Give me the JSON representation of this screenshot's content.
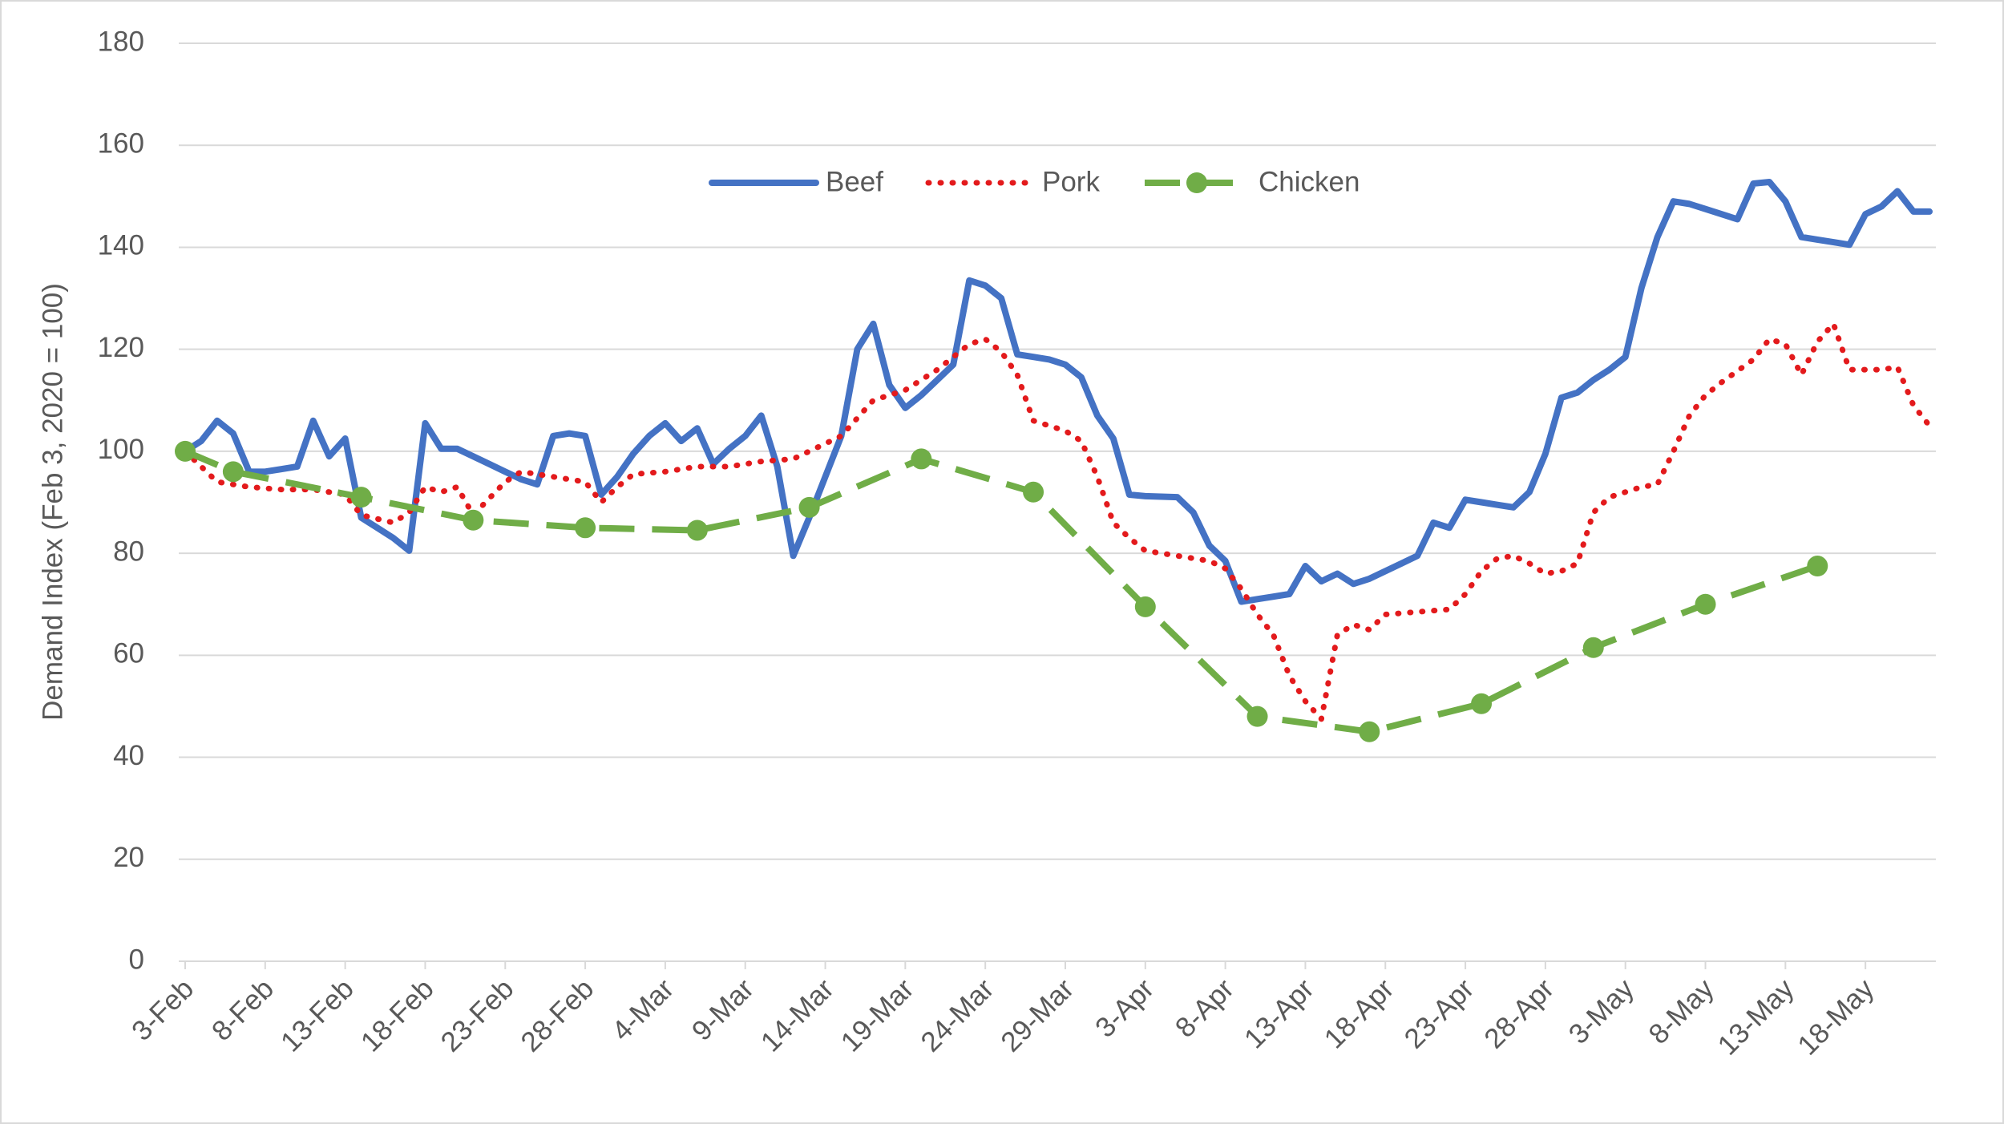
{
  "chart_data": {
    "type": "line",
    "y_label": "Demand Index (Feb 3, 2020 = 100)",
    "xlim": [
      0,
      109.4
    ],
    "xticks": [
      {
        "value": 0,
        "label": "3-Feb"
      },
      {
        "value": 5,
        "label": "8-Feb"
      },
      {
        "value": 10,
        "label": "13-Feb"
      },
      {
        "value": 15,
        "label": "18-Feb"
      },
      {
        "value": 20,
        "label": "23-Feb"
      },
      {
        "value": 25,
        "label": "28-Feb"
      },
      {
        "value": 30,
        "label": "4-Mar"
      },
      {
        "value": 35,
        "label": "9-Mar"
      },
      {
        "value": 40,
        "label": "14-Mar"
      },
      {
        "value": 45,
        "label": "19-Mar"
      },
      {
        "value": 50,
        "label": "24-Mar"
      },
      {
        "value": 55,
        "label": "29-Mar"
      },
      {
        "value": 60,
        "label": "3-Apr"
      },
      {
        "value": 65,
        "label": "8-Apr"
      },
      {
        "value": 70,
        "label": "13-Apr"
      },
      {
        "value": 75,
        "label": "18-Apr"
      },
      {
        "value": 80,
        "label": "23-Apr"
      },
      {
        "value": 85,
        "label": "28-Apr"
      },
      {
        "value": 90,
        "label": "3-May"
      },
      {
        "value": 95,
        "label": "8-May"
      },
      {
        "value": 100,
        "label": "13-May"
      },
      {
        "value": 105,
        "label": "18-May"
      }
    ],
    "ylim": [
      0,
      180
    ],
    "yticks": [
      0,
      20,
      40,
      60,
      80,
      100,
      120,
      140,
      160,
      180
    ],
    "grid": true,
    "legend": "top",
    "series": [
      {
        "name": "Beef",
        "color": "#4472c4",
        "style": "solid",
        "x": [
          0,
          1,
          2,
          3,
          4,
          5,
          6,
          7,
          8,
          9,
          10,
          11,
          12,
          13,
          14,
          15,
          16,
          17,
          18,
          19,
          20,
          21,
          22,
          23,
          24,
          25,
          26,
          27,
          28,
          29,
          30,
          31,
          32,
          33,
          34,
          35,
          36,
          37,
          38,
          39,
          40,
          41,
          42,
          43,
          44,
          45,
          46,
          47,
          48,
          49,
          50,
          51,
          52,
          53,
          54,
          55,
          56,
          57,
          58,
          59,
          60,
          61,
          62,
          63,
          64,
          65,
          66,
          67,
          68,
          69,
          70,
          71,
          72,
          73,
          74,
          75,
          76,
          77,
          78,
          79,
          80,
          81,
          82,
          83,
          84,
          85,
          86,
          87,
          88,
          89,
          90,
          91,
          92,
          93,
          94,
          95,
          96,
          97,
          98,
          99,
          100,
          101,
          102,
          103,
          104,
          105,
          106,
          107,
          108,
          109
        ],
        "values": [
          100,
          102,
          106,
          103.5,
          96,
          96,
          96.5,
          97,
          106,
          99,
          102.5,
          87,
          85,
          83,
          80.5,
          105.5,
          100.5,
          100.5,
          99,
          97.5,
          96,
          94.5,
          93.5,
          103,
          103.5,
          103,
          91.5,
          95,
          99.5,
          103,
          105.5,
          102,
          104.5,
          97.5,
          100.5,
          103,
          107,
          97,
          79.5,
          87,
          95,
          103,
          120,
          125,
          113,
          108.5,
          111,
          114,
          117,
          133.5,
          132.5,
          130,
          119,
          118.5,
          118,
          117,
          114.5,
          107,
          102.5,
          91.5,
          91.2,
          91.1,
          91,
          88,
          81.5,
          78.5,
          70.5,
          71,
          71.5,
          72,
          77.5,
          74.5,
          76,
          74,
          75,
          76.5,
          78,
          79.5,
          86,
          85,
          90.5,
          90,
          89.5,
          89,
          92,
          99.5,
          110.5,
          111.5,
          114,
          116,
          118.5,
          132,
          142,
          149,
          148.5,
          147.5,
          146.5,
          145.5,
          152.5,
          152.8,
          149,
          142,
          141.5,
          141,
          140.5,
          146.5,
          148,
          151,
          147,
          147
        ]
      },
      {
        "name": "Pork",
        "color": "#e31a1c",
        "style": "dotted",
        "x": [
          0,
          2,
          4,
          6,
          8,
          10,
          11,
          13,
          14,
          15,
          16,
          17,
          18,
          20,
          21,
          22,
          24,
          25,
          26,
          27,
          28,
          30,
          32,
          34,
          36,
          38,
          39,
          41,
          43,
          45,
          47,
          49,
          50,
          51,
          52,
          53,
          55,
          56,
          57,
          58,
          59,
          60,
          62,
          64,
          65,
          66,
          67,
          68,
          69,
          70,
          71,
          72,
          73,
          74,
          75,
          77,
          79,
          80,
          81,
          82,
          83,
          84,
          85,
          86,
          87,
          88,
          89,
          91,
          92,
          93,
          94,
          95,
          96,
          98,
          99,
          100,
          101,
          102,
          103,
          104,
          106,
          107,
          108,
          109
        ],
        "values": [
          100,
          94,
          93,
          92.5,
          92.5,
          91.5,
          87.5,
          86,
          88,
          93,
          92,
          93,
          87.5,
          94,
          96,
          95.5,
          94.5,
          94,
          90,
          93,
          95.5,
          96,
          97,
          97,
          98,
          98.5,
          100,
          103,
          110,
          112,
          116,
          121,
          122,
          119.5,
          115,
          106,
          104,
          102,
          95,
          86,
          83,
          80.5,
          79.5,
          78.5,
          77,
          73,
          68,
          64,
          56,
          51,
          47.5,
          64,
          66,
          65,
          68,
          68.5,
          69,
          72,
          76.5,
          79,
          79.5,
          78,
          76,
          76.5,
          78,
          88,
          91,
          93,
          93.5,
          100,
          107,
          111,
          113.5,
          118,
          122,
          121,
          115,
          121.5,
          125,
          116,
          116,
          116.5,
          109,
          105
        ]
      },
      {
        "name": "Chicken",
        "color": "#70ad47",
        "style": "dashed",
        "x": [
          0,
          3,
          11,
          18,
          25,
          32,
          39,
          46,
          53,
          60,
          67,
          74,
          81,
          88,
          95,
          102
        ],
        "values": [
          100,
          96,
          91,
          86.5,
          85,
          84.5,
          89,
          98.5,
          92,
          69.5,
          48,
          45,
          50.5,
          61.5,
          70,
          77.5
        ]
      }
    ]
  }
}
